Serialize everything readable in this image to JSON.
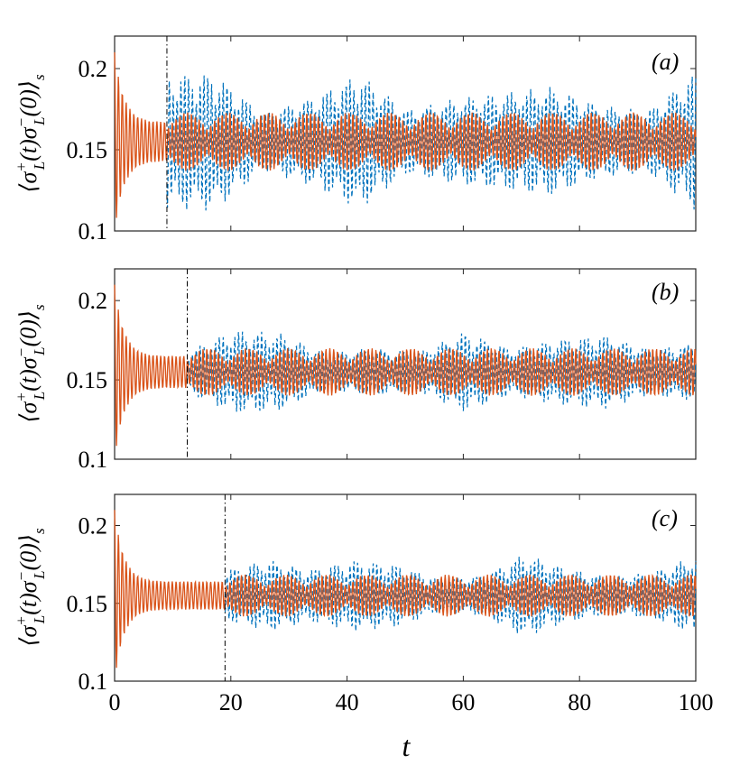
{
  "chart_data": [
    {
      "panel": "(a)",
      "type": "line",
      "ylabel": "⟨σ⁺L(t)σ⁻L(0)⟩s",
      "xlim": [
        0,
        100
      ],
      "ylim": [
        0.1,
        0.22
      ],
      "yticks": [
        0.1,
        0.15,
        0.2
      ],
      "ytick_labels": [
        "0.1",
        "0.15",
        "0.2"
      ],
      "marker_t": 9,
      "mean": 0.155,
      "series": [
        {
          "name": "orange-solid",
          "style": "solid",
          "color": "#d95319",
          "initial_amplitude": 0.055,
          "settle_amplitude": 0.012
        },
        {
          "name": "blue-dashed",
          "style": "dashed",
          "color": "#0072bd",
          "peak_amplitude": 0.045
        }
      ]
    },
    {
      "panel": "(b)",
      "type": "line",
      "ylabel": "⟨σ⁺L(t)σ⁻L(0)⟩s",
      "xlim": [
        0,
        100
      ],
      "ylim": [
        0.1,
        0.22
      ],
      "yticks": [
        0.1,
        0.15,
        0.2
      ],
      "ytick_labels": [
        "0.1",
        "0.15",
        "0.2"
      ],
      "marker_t": 12.5,
      "mean": 0.155,
      "series": [
        {
          "name": "orange-solid",
          "style": "solid",
          "color": "#d95319",
          "initial_amplitude": 0.055,
          "settle_amplitude": 0.01
        },
        {
          "name": "blue-dashed",
          "style": "dashed",
          "color": "#0072bd",
          "peak_amplitude": 0.03
        }
      ]
    },
    {
      "panel": "(c)",
      "type": "line",
      "ylabel": "⟨σ⁺L(t)σ⁻L(0)⟩s",
      "xlim": [
        0,
        100
      ],
      "ylim": [
        0.1,
        0.22
      ],
      "yticks": [
        0.1,
        0.15,
        0.2
      ],
      "ytick_labels": [
        "0.1",
        "0.15",
        "0.2"
      ],
      "xticks": [
        0,
        20,
        40,
        60,
        80,
        100
      ],
      "xtick_labels": [
        "0",
        "20",
        "40",
        "60",
        "80",
        "100"
      ],
      "xlabel": "t",
      "marker_t": 19,
      "mean": 0.155,
      "series": [
        {
          "name": "orange-solid",
          "style": "solid",
          "color": "#d95319",
          "initial_amplitude": 0.055,
          "settle_amplitude": 0.009
        },
        {
          "name": "blue-dashed",
          "style": "dashed",
          "color": "#0072bd",
          "peak_amplitude": 0.028
        }
      ]
    }
  ],
  "colors": {
    "orange": "#d95319",
    "blue": "#0072bd",
    "axis": "#262626"
  }
}
